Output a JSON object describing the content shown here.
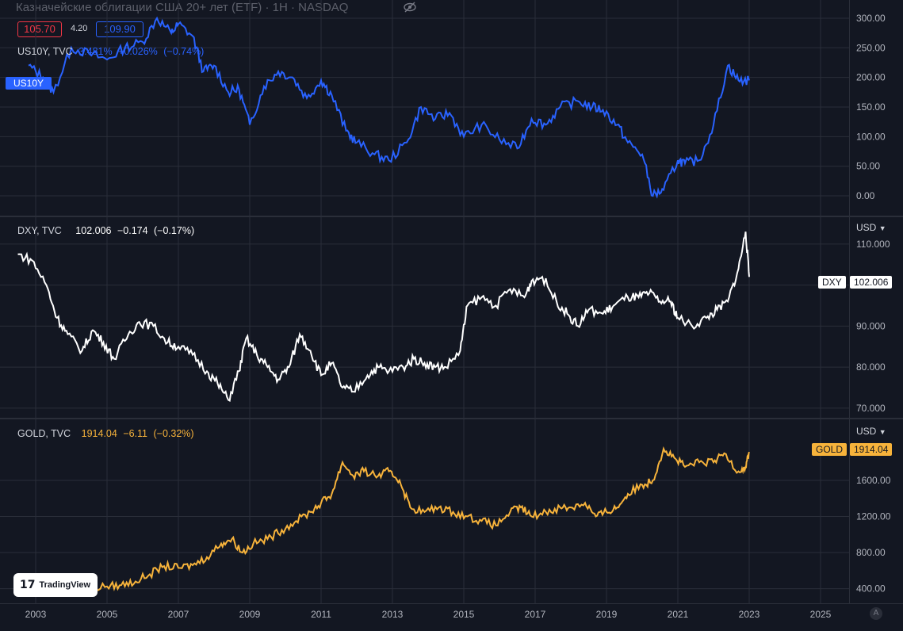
{
  "header": {
    "title": "Казначейские облигации США 20+ лет (ETF) · 1H · NASDAQ",
    "bid": "105.70",
    "spread": "4.20",
    "ask": "109.90"
  },
  "panes": {
    "us10y": {
      "symbol": "US10Y, TVC",
      "value": "3.481%",
      "change": "+0.026%",
      "pct": "(−0.74%)",
      "tag": "US10Y"
    },
    "dxy": {
      "symbol": "DXY, TVC",
      "value": "102.006",
      "change": "−0.174",
      "pct": "(−0.17%)",
      "tag": "DXY",
      "tag_value": "102.006",
      "currency": "USD"
    },
    "gold": {
      "symbol": "GOLD, TVC",
      "value": "1914.04",
      "change": "−6.11",
      "pct": "(−0.32%)",
      "tag": "GOLD",
      "tag_value": "1914.04",
      "currency": "USD"
    }
  },
  "brand": {
    "name": "TradingView"
  },
  "corner": {
    "label": "A"
  },
  "colors": {
    "us10y": "#2962ff",
    "dxy": "#ffffff",
    "gold": "#f7b33b",
    "background": "#131722"
  },
  "chart_data": [
    {
      "type": "line",
      "name": "US10Y (% change)",
      "y_ticks": [
        "300.00",
        "250.00",
        "200.00",
        "150.00",
        "100.00",
        "50.00",
        "0.00"
      ],
      "ylim": [
        -20,
        320
      ],
      "x": [
        2002.8,
        2003.2,
        2003.5,
        2004.0,
        2004.5,
        2005.0,
        2005.5,
        2006.0,
        2006.4,
        2006.8,
        2007.0,
        2007.4,
        2007.7,
        2008.0,
        2008.4,
        2008.7,
        2009.0,
        2009.4,
        2009.8,
        2010.2,
        2010.6,
        2011.0,
        2011.3,
        2011.7,
        2012.0,
        2012.5,
        2012.9,
        2013.4,
        2013.8,
        2014.2,
        2014.6,
        2015.0,
        2015.5,
        2016.0,
        2016.5,
        2016.9,
        2017.3,
        2017.7,
        2018.2,
        2018.6,
        2018.9,
        2019.3,
        2019.6,
        2020.0,
        2020.3,
        2020.6,
        2021.0,
        2021.2,
        2021.6,
        2022.0,
        2022.4,
        2022.7,
        2023.0
      ],
      "values": [
        220,
        200,
        175,
        250,
        240,
        230,
        250,
        260,
        300,
        275,
        290,
        270,
        210,
        220,
        175,
        180,
        120,
        185,
        210,
        200,
        165,
        195,
        170,
        110,
        90,
        70,
        60,
        90,
        150,
        130,
        140,
        100,
        120,
        95,
        80,
        130,
        120,
        150,
        160,
        150,
        145,
        120,
        90,
        70,
        0,
        10,
        60,
        55,
        60,
        120,
        220,
        195,
        195
      ]
    },
    {
      "type": "line",
      "name": "DXY",
      "currency": "USD",
      "y_ticks": [
        "110.000",
        "100.000",
        "90.000",
        "80.000",
        "70.000"
      ],
      "ylim": [
        69,
        115
      ],
      "x": [
        2002.5,
        2002.9,
        2003.3,
        2003.6,
        2003.9,
        2004.3,
        2004.6,
        2004.9,
        2005.2,
        2005.6,
        2005.9,
        2006.3,
        2006.7,
        2007.0,
        2007.4,
        2007.8,
        2008.1,
        2008.4,
        2008.7,
        2008.9,
        2009.2,
        2009.5,
        2009.8,
        2010.1,
        2010.4,
        2010.7,
        2011.0,
        2011.3,
        2011.6,
        2011.9,
        2012.3,
        2012.6,
        2012.9,
        2013.3,
        2013.6,
        2013.9,
        2014.2,
        2014.5,
        2014.9,
        2015.1,
        2015.5,
        2015.9,
        2016.3,
        2016.7,
        2016.9,
        2017.2,
        2017.6,
        2017.9,
        2018.2,
        2018.5,
        2018.9,
        2019.2,
        2019.6,
        2019.9,
        2020.2,
        2020.5,
        2020.8,
        2021.0,
        2021.4,
        2021.8,
        2022.1,
        2022.4,
        2022.7,
        2022.9,
        2023.0
      ],
      "values": [
        107.5,
        106,
        100,
        92,
        88,
        84,
        89,
        86,
        82,
        88,
        91,
        90,
        86,
        85,
        83,
        79,
        76,
        72,
        79,
        87,
        83,
        80,
        77,
        80,
        88,
        84,
        78,
        81,
        75,
        74,
        78,
        80,
        79,
        80,
        82,
        81,
        80,
        80,
        84,
        95,
        97,
        95,
        99,
        97,
        101,
        102,
        96,
        93,
        90,
        94,
        93,
        95,
        97,
        97,
        98,
        96,
        96,
        92,
        90,
        92,
        94,
        96,
        104,
        113,
        102
      ]
    },
    {
      "type": "line",
      "name": "GOLD",
      "currency": "USD",
      "y_ticks": [
        "1600.00",
        "1200.00",
        "800.00",
        "400.00"
      ],
      "ylim": [
        300,
        2100
      ],
      "x": [
        2003.0,
        2003.5,
        2004.0,
        2004.5,
        2005.0,
        2005.4,
        2005.8,
        2006.2,
        2006.6,
        2007.0,
        2007.4,
        2007.8,
        2008.2,
        2008.5,
        2008.8,
        2009.1,
        2009.5,
        2009.9,
        2010.3,
        2010.7,
        2011.0,
        2011.3,
        2011.6,
        2011.9,
        2012.2,
        2012.6,
        2012.9,
        2013.2,
        2013.5,
        2013.9,
        2014.3,
        2014.7,
        2015.1,
        2015.5,
        2015.9,
        2016.3,
        2016.6,
        2016.9,
        2017.3,
        2017.7,
        2018.0,
        2018.4,
        2018.7,
        2019.0,
        2019.3,
        2019.6,
        2020.0,
        2020.3,
        2020.6,
        2020.9,
        2021.2,
        2021.6,
        2022.0,
        2022.3,
        2022.7,
        2022.9,
        2023.0
      ],
      "values": [
        350,
        380,
        400,
        410,
        425,
        440,
        480,
        560,
        650,
        630,
        660,
        750,
        900,
        950,
        800,
        900,
        950,
        1050,
        1150,
        1250,
        1350,
        1450,
        1800,
        1650,
        1700,
        1650,
        1700,
        1600,
        1300,
        1250,
        1300,
        1250,
        1200,
        1150,
        1100,
        1250,
        1300,
        1200,
        1250,
        1300,
        1300,
        1350,
        1200,
        1250,
        1300,
        1450,
        1550,
        1600,
        1950,
        1850,
        1750,
        1800,
        1800,
        1900,
        1700,
        1750,
        1914
      ]
    }
  ],
  "x_axis": {
    "ticks": [
      "2003",
      "2005",
      "2007",
      "2009",
      "2011",
      "2013",
      "2015",
      "2017",
      "2019",
      "2021",
      "2023",
      "2025"
    ]
  }
}
